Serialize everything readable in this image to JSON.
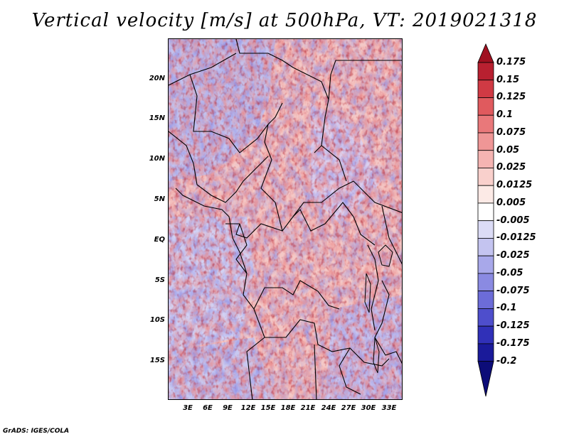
{
  "title": "Vertical velocity [m/s] at 500hPa, VT: 2019021318",
  "footer": "GrADS: IGES/COLA",
  "map": {
    "region": "Central Africa",
    "lat_labels": [
      "20N",
      "15N",
      "10N",
      "5N",
      "EQ",
      "5S",
      "10S",
      "15S"
    ],
    "lon_labels": [
      "3E",
      "6E",
      "9E",
      "12E",
      "15E",
      "18E",
      "21E",
      "24E",
      "27E",
      "30E",
      "33E"
    ]
  },
  "colorbar": {
    "labels": [
      "0.175",
      "0.15",
      "0.125",
      "0.1",
      "0.075",
      "0.05",
      "0.025",
      "0.0125",
      "0.005",
      "-0.005",
      "-0.0125",
      "-0.025",
      "-0.05",
      "-0.075",
      "-0.1",
      "-0.125",
      "-0.175",
      "-0.2"
    ],
    "colors": [
      "#a01020",
      "#b82030",
      "#d03a44",
      "#e05a5e",
      "#e9787a",
      "#ef9696",
      "#f5b4b2",
      "#f9d0cc",
      "#fceae6",
      "#ffffff",
      "#dcdcf6",
      "#c4c4f0",
      "#a8a8ea",
      "#8a8ae2",
      "#6c6cd8",
      "#4e4ecc",
      "#3030b8",
      "#1a1a9a",
      "#0c0c78"
    ]
  }
}
